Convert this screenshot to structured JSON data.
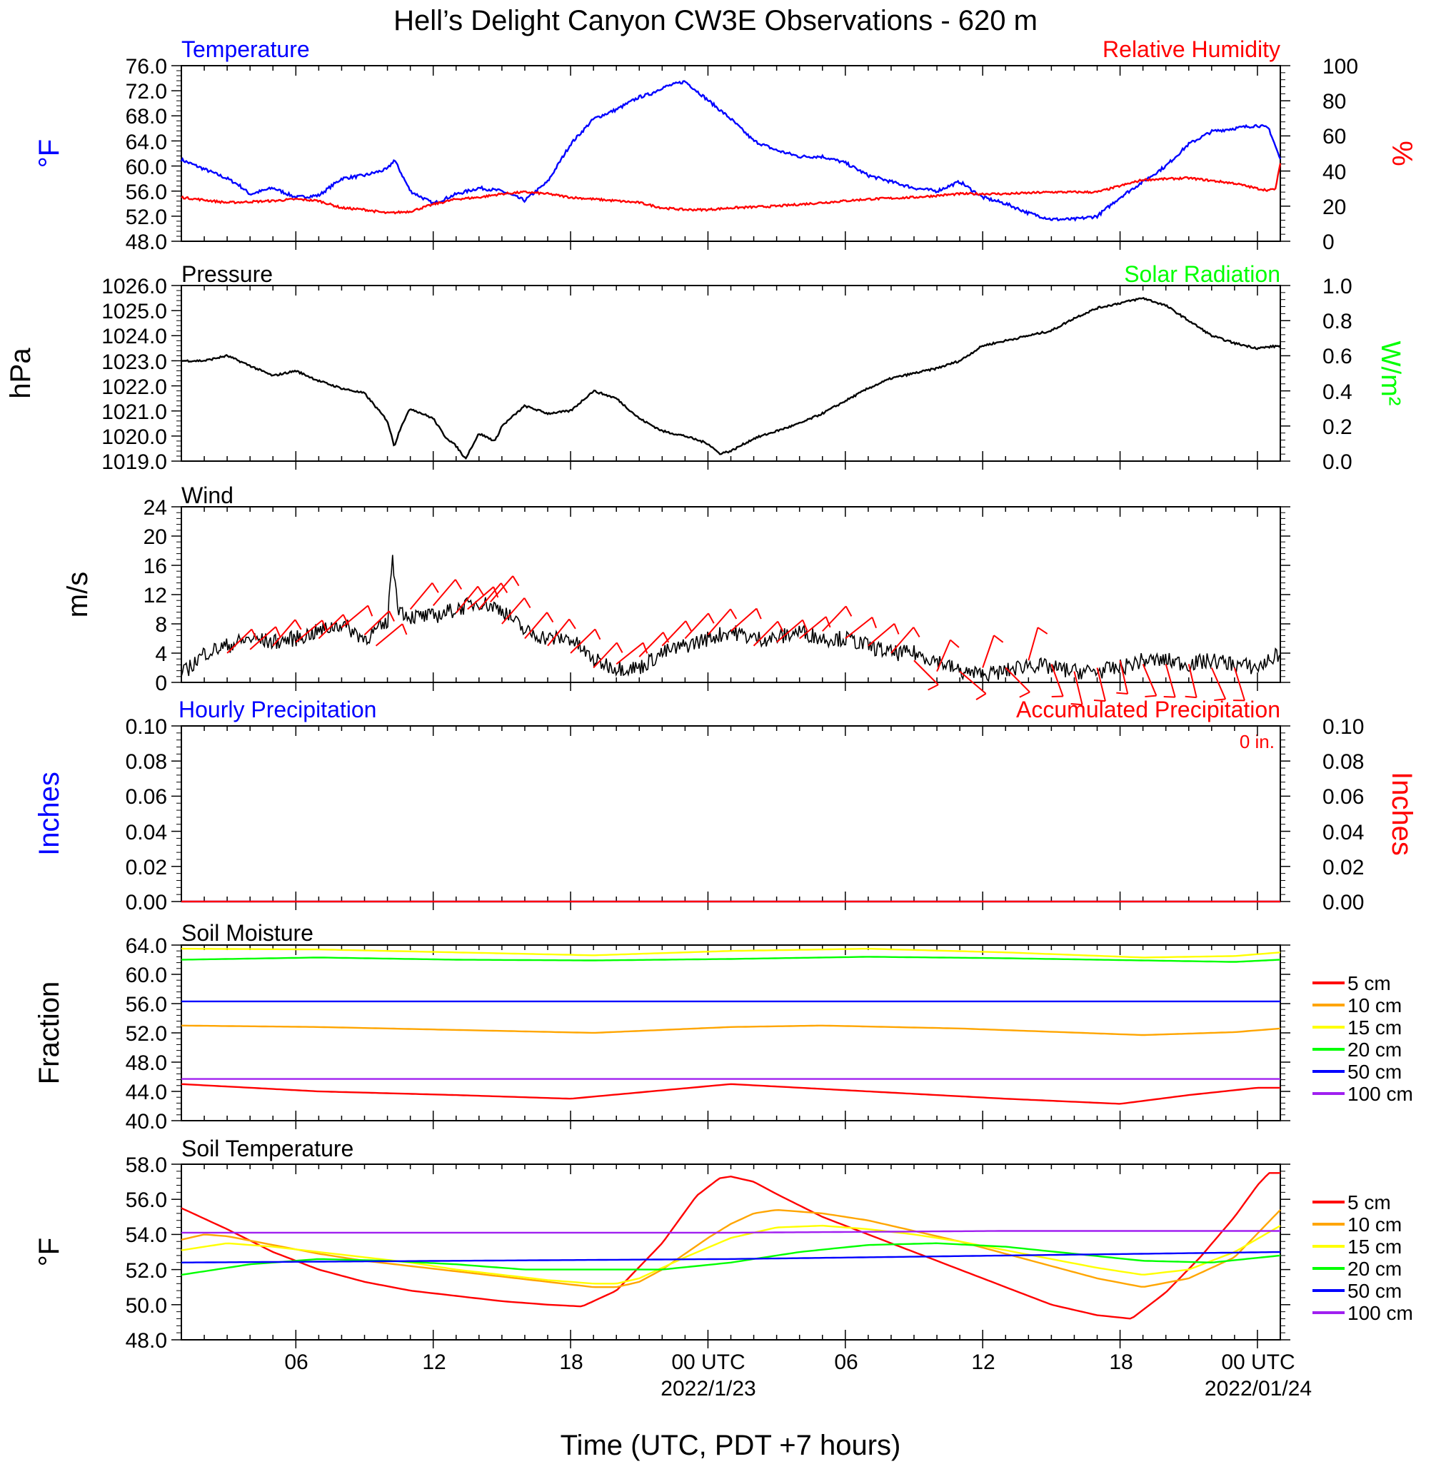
{
  "title": "Hell’s Delight Canyon CW3E Observations - 620 m",
  "xaxis": {
    "title": "Time (UTC, PDT +7 hours)",
    "ticks": [
      "06",
      "12",
      "18",
      "00 UTC",
      "06",
      "12",
      "18",
      "00 UTC"
    ],
    "dates": [
      "2022/1/23",
      "2022/01/24"
    ]
  },
  "colors": {
    "blue": "#0000ff",
    "red": "#ff0000",
    "green": "#00ff00",
    "black": "#000000",
    "orange": "#ffa500",
    "yellow": "#ffff00",
    "purple": "#a020f0"
  },
  "panels": {
    "temp_rh": {
      "title_left": "Temperature",
      "title_right": "Relative Humidity",
      "unit_left": "°F",
      "unit_right": "%",
      "left_ticks": [
        "48.0",
        "52.0",
        "56.0",
        "60.0",
        "64.0",
        "68.0",
        "72.0",
        "76.0"
      ],
      "right_ticks": [
        "0",
        "20",
        "40",
        "60",
        "80",
        "100"
      ]
    },
    "pressure": {
      "title_left": "Pressure",
      "title_right": "Solar Radiation",
      "unit_left": "hPa",
      "unit_right": "W/m²",
      "left_ticks": [
        "1019.0",
        "1020.0",
        "1021.0",
        "1022.0",
        "1023.0",
        "1024.0",
        "1025.0",
        "1026.0"
      ],
      "right_ticks": [
        "0.0",
        "0.2",
        "0.4",
        "0.6",
        "0.8",
        "1.0"
      ]
    },
    "wind": {
      "title_left": "Wind",
      "unit_left": "m/s",
      "left_ticks": [
        "0",
        "4",
        "8",
        "12",
        "16",
        "20",
        "24"
      ]
    },
    "precip": {
      "title_left": "Hourly Precipitation",
      "title_right": "Accumulated Precipitation",
      "total": "0 in.",
      "unit_left": "Inches",
      "unit_right": "Inches",
      "left_ticks": [
        "0.00",
        "0.02",
        "0.04",
        "0.06",
        "0.08",
        "0.10"
      ],
      "right_ticks": [
        "0.00",
        "0.02",
        "0.04",
        "0.06",
        "0.08",
        "0.10"
      ]
    },
    "soil_moisture": {
      "title_left": "Soil Moisture",
      "unit_left": "Fraction",
      "left_ticks": [
        "40.0",
        "44.0",
        "48.0",
        "52.0",
        "56.0",
        "60.0",
        "64.0"
      ],
      "legend": [
        "5 cm",
        "10 cm",
        "15 cm",
        "20 cm",
        "50 cm",
        "100 cm"
      ]
    },
    "soil_temp": {
      "title_left": "Soil Temperature",
      "unit_left": "°F",
      "left_ticks": [
        "48.0",
        "50.0",
        "52.0",
        "54.0",
        "56.0",
        "58.0"
      ],
      "legend": [
        "5 cm",
        "10 cm",
        "15 cm",
        "20 cm",
        "50 cm",
        "100 cm"
      ]
    }
  },
  "chart_data": [
    {
      "type": "line",
      "panel": "temp_rh",
      "x_hours_start_utc": "2022-01-22 01:00",
      "x_range_hours": [
        0,
        48
      ],
      "series": [
        {
          "name": "Temperature",
          "axis": "left",
          "color": "blue",
          "ylim": [
            48,
            76
          ],
          "x": [
            0,
            1,
            2,
            2.5,
            3,
            4,
            5,
            6,
            7,
            8,
            9,
            9.3,
            10,
            11,
            12,
            13,
            14,
            15,
            16,
            17,
            18,
            19,
            20,
            20.5,
            21,
            21.5,
            22,
            23,
            24,
            25,
            26,
            27,
            28,
            29,
            30,
            31,
            32,
            33,
            34,
            35,
            36,
            37,
            38,
            39,
            40,
            41,
            42,
            43,
            44,
            45,
            46,
            47,
            47.5,
            48
          ],
          "y": [
            61,
            59.5,
            58,
            57,
            55.5,
            56.5,
            55,
            55.3,
            58,
            58.5,
            59.5,
            61,
            56,
            54,
            55.5,
            56.5,
            56,
            54.5,
            57.5,
            63.5,
            67.5,
            69,
            71,
            71.5,
            72.5,
            73,
            73.5,
            70.5,
            67.5,
            64,
            62.5,
            61.5,
            61.5,
            60.5,
            58.5,
            57.5,
            56.5,
            56,
            57.5,
            55,
            54,
            52.5,
            51.5,
            51.5,
            52,
            55,
            57.5,
            60,
            63.5,
            65.5,
            66,
            66.5,
            66,
            61
          ]
        },
        {
          "name": "Relative Humidity",
          "axis": "right",
          "color": "red",
          "ylim": [
            0,
            100
          ],
          "x": [
            0,
            2,
            4,
            5,
            6,
            7,
            8,
            9,
            10,
            11,
            12,
            13,
            14,
            15,
            16,
            17,
            18,
            19,
            20,
            21,
            22,
            23,
            24,
            26,
            28,
            30,
            32,
            34,
            36,
            38,
            40,
            42,
            44,
            46,
            47,
            47.5,
            47.8,
            48
          ],
          "y": [
            25,
            22,
            23,
            24,
            23,
            19,
            18,
            16,
            17,
            21,
            24,
            25,
            27,
            28,
            27,
            25,
            24,
            23,
            22,
            19,
            18,
            18,
            19,
            20,
            22,
            24,
            25,
            27,
            27,
            28,
            28,
            35,
            36,
            33,
            30,
            29,
            30,
            45
          ]
        }
      ]
    },
    {
      "type": "line",
      "panel": "pressure",
      "ylim": [
        1019,
        1026
      ],
      "series": [
        {
          "name": "Pressure",
          "color": "black",
          "x": [
            0,
            1,
            2,
            3,
            4,
            5,
            6,
            7,
            8,
            9,
            9.3,
            9.6,
            10,
            11,
            11.5,
            12,
            12.4,
            13,
            13.7,
            14,
            15,
            16,
            17,
            18,
            19,
            20,
            21,
            22,
            23,
            23.5,
            24,
            25,
            26,
            27,
            28,
            29,
            30,
            31,
            32,
            33,
            34,
            35,
            36,
            37,
            38,
            39,
            40,
            41,
            42,
            43,
            44,
            45,
            46,
            47,
            48
          ],
          "y": [
            1023,
            1023,
            1023.2,
            1022.8,
            1022.4,
            1022.6,
            1022.2,
            1021.9,
            1021.7,
            1020.6,
            1019.6,
            1020.4,
            1021.1,
            1020.7,
            1020,
            1019.6,
            1019.1,
            1020.1,
            1019.8,
            1020.4,
            1021.2,
            1020.9,
            1021,
            1021.8,
            1021.5,
            1020.7,
            1020.2,
            1020,
            1019.7,
            1019.3,
            1019.4,
            1019.9,
            1020.2,
            1020.5,
            1020.9,
            1021.4,
            1021.9,
            1022.3,
            1022.5,
            1022.7,
            1023,
            1023.6,
            1023.8,
            1024,
            1024.2,
            1024.7,
            1025.1,
            1025.3,
            1025.5,
            1025.2,
            1024.6,
            1024,
            1023.7,
            1023.5,
            1023.6
          ]
        }
      ]
    },
    {
      "type": "line",
      "panel": "wind",
      "ylim": [
        0,
        24
      ],
      "series": [
        {
          "name": "Wind speed",
          "color": "black",
          "x": [
            0,
            1,
            2,
            3,
            4,
            5,
            6,
            7,
            8,
            9,
            9.2,
            9.5,
            10,
            11,
            12,
            13,
            14,
            15,
            16,
            17,
            18,
            19,
            20,
            21,
            22,
            23,
            24,
            25,
            26,
            27,
            28,
            29,
            30,
            31,
            32,
            33,
            34,
            35,
            36,
            37,
            38,
            39,
            40,
            41,
            42,
            43,
            44,
            45,
            46,
            47,
            48
          ],
          "y": [
            1,
            4,
            5,
            6,
            5.5,
            6,
            7,
            8,
            6,
            8,
            17,
            10,
            9,
            9,
            10,
            11,
            10,
            7,
            6,
            6,
            3,
            2,
            2,
            4,
            5,
            6,
            7,
            6,
            6,
            7,
            6,
            6,
            5,
            4,
            4,
            3,
            1.5,
            1,
            1.5,
            2.5,
            2,
            1.5,
            1.5,
            2,
            3,
            3,
            2.5,
            3,
            2.5,
            2,
            4
          ]
        }
      ],
      "barbs": {
        "color": "red",
        "x": [
          2,
          3,
          4,
          5,
          6,
          7,
          8,
          8.5,
          10,
          11,
          12,
          12.5,
          13,
          13.5,
          14,
          15,
          16,
          17,
          18,
          19,
          20,
          21,
          22,
          23,
          24,
          25,
          26,
          27,
          28,
          29,
          30,
          31,
          32,
          33,
          34,
          35,
          36,
          37,
          38,
          39,
          40,
          41,
          42,
          43,
          44,
          45,
          46
        ],
        "y": [
          4,
          4.5,
          5,
          5.5,
          6,
          7.5,
          6.5,
          5,
          10,
          10.5,
          9.5,
          10,
          10,
          11,
          8,
          6,
          5,
          4,
          2,
          2.5,
          3.5,
          5,
          6,
          6.5,
          7,
          5,
          5.5,
          6,
          7,
          6,
          5,
          4,
          3,
          1.5,
          1.5,
          2,
          2,
          3,
          2.5,
          1.5,
          2,
          3,
          2.5,
          2.5,
          2.5,
          2,
          2
        ]
      }
    },
    {
      "type": "line",
      "panel": "precip",
      "ylim": [
        0,
        0.1
      ],
      "series": [
        {
          "name": "Hourly Precipitation",
          "color": "blue",
          "x": [
            0,
            48
          ],
          "y": [
            0,
            0
          ]
        },
        {
          "name": "Accumulated Precipitation",
          "color": "red",
          "x": [
            0,
            48
          ],
          "y": [
            0,
            0
          ]
        }
      ]
    },
    {
      "type": "line",
      "panel": "soil_moisture",
      "ylim": [
        40,
        64
      ],
      "series": [
        {
          "name": "5 cm",
          "color": "red",
          "x": [
            0,
            6,
            12,
            17,
            24,
            30,
            36,
            41,
            44,
            47,
            48
          ],
          "y": [
            45,
            44,
            43.5,
            43,
            45,
            44,
            43,
            42.3,
            43.5,
            44.5,
            44.5
          ]
        },
        {
          "name": "10 cm",
          "color": "orange",
          "x": [
            0,
            6,
            12,
            18,
            24,
            28,
            34,
            42,
            46,
            48
          ],
          "y": [
            53,
            52.8,
            52.4,
            52,
            52.8,
            53,
            52.6,
            51.7,
            52.1,
            52.6
          ]
        },
        {
          "name": "15 cm",
          "color": "yellow",
          "x": [
            0,
            6,
            12,
            18,
            24,
            30,
            36,
            42,
            46,
            48
          ],
          "y": [
            63.5,
            63.4,
            63,
            62.6,
            63.2,
            63.5,
            63,
            62.3,
            62.5,
            63
          ]
        },
        {
          "name": "20 cm",
          "color": "green",
          "x": [
            0,
            6,
            12,
            18,
            24,
            30,
            36,
            42,
            46,
            48
          ],
          "y": [
            62,
            62.3,
            62,
            61.9,
            62.1,
            62.4,
            62.2,
            61.9,
            61.7,
            62
          ]
        },
        {
          "name": "50 cm",
          "color": "blue",
          "x": [
            0,
            48
          ],
          "y": [
            56.3,
            56.3
          ]
        },
        {
          "name": "100 cm",
          "color": "purple",
          "x": [
            0,
            48
          ],
          "y": [
            45.7,
            45.7
          ]
        }
      ]
    },
    {
      "type": "line",
      "panel": "soil_temp",
      "ylim": [
        48,
        58
      ],
      "series": [
        {
          "name": "5 cm",
          "color": "red",
          "x": [
            0,
            2,
            4,
            6,
            8,
            10,
            12,
            14,
            16,
            17.5,
            19,
            21,
            22.5,
            23.5,
            24,
            25,
            26,
            28,
            30,
            32,
            34,
            36,
            38,
            40,
            41.5,
            43,
            44.5,
            46,
            47,
            47.5,
            48
          ],
          "y": [
            55.5,
            54.3,
            53,
            52,
            51.3,
            50.8,
            50.5,
            50.2,
            50,
            49.9,
            50.8,
            53.5,
            56.2,
            57.2,
            57.3,
            57,
            56.3,
            55,
            54,
            53,
            52,
            51,
            50,
            49.4,
            49.2,
            50.7,
            52.7,
            55,
            56.8,
            57.5,
            57.5
          ]
        },
        {
          "name": "10 cm",
          "color": "orange",
          "x": [
            0,
            1,
            2,
            4,
            6,
            8,
            10,
            12,
            14,
            16,
            18,
            19,
            20,
            21,
            22,
            23,
            24,
            25,
            26,
            28,
            30,
            32,
            34,
            36,
            38,
            40,
            42,
            44,
            46,
            48
          ],
          "y": [
            53.7,
            54,
            53.9,
            53.4,
            52.9,
            52.5,
            52.2,
            51.9,
            51.6,
            51.3,
            51,
            51,
            51.3,
            52,
            52.9,
            53.8,
            54.6,
            55.2,
            55.4,
            55.2,
            54.8,
            54.2,
            53.6,
            52.9,
            52.2,
            51.5,
            51,
            51.5,
            52.7,
            55.4
          ]
        },
        {
          "name": "15 cm",
          "color": "yellow",
          "x": [
            0,
            2,
            4,
            6,
            8,
            10,
            12,
            14,
            16,
            18,
            19,
            20,
            22,
            24,
            26,
            28,
            30,
            32,
            34,
            36,
            38,
            40,
            42,
            44,
            46,
            48
          ],
          "y": [
            53.1,
            53.5,
            53.3,
            53,
            52.7,
            52.4,
            52,
            51.7,
            51.4,
            51.2,
            51.2,
            51.5,
            52.7,
            53.8,
            54.4,
            54.5,
            54.3,
            54,
            53.6,
            53.1,
            52.6,
            52.1,
            51.7,
            52,
            53,
            54.5
          ]
        },
        {
          "name": "20 cm",
          "color": "green",
          "x": [
            0,
            3,
            6,
            9,
            12,
            15,
            18,
            21,
            24,
            27,
            30,
            33,
            36,
            39,
            42,
            45,
            48
          ],
          "y": [
            51.7,
            52.3,
            52.6,
            52.5,
            52.3,
            52,
            52,
            52,
            52.4,
            53,
            53.4,
            53.5,
            53.3,
            52.9,
            52.5,
            52.4,
            52.8
          ]
        },
        {
          "name": "50 cm",
          "color": "blue",
          "x": [
            0,
            12,
            24,
            36,
            48
          ],
          "y": [
            52.4,
            52.5,
            52.6,
            52.8,
            53
          ]
        },
        {
          "name": "100 cm",
          "color": "purple",
          "x": [
            0,
            12,
            24,
            36,
            48
          ],
          "y": [
            54.1,
            54.1,
            54.1,
            54.2,
            54.2
          ]
        }
      ]
    }
  ]
}
